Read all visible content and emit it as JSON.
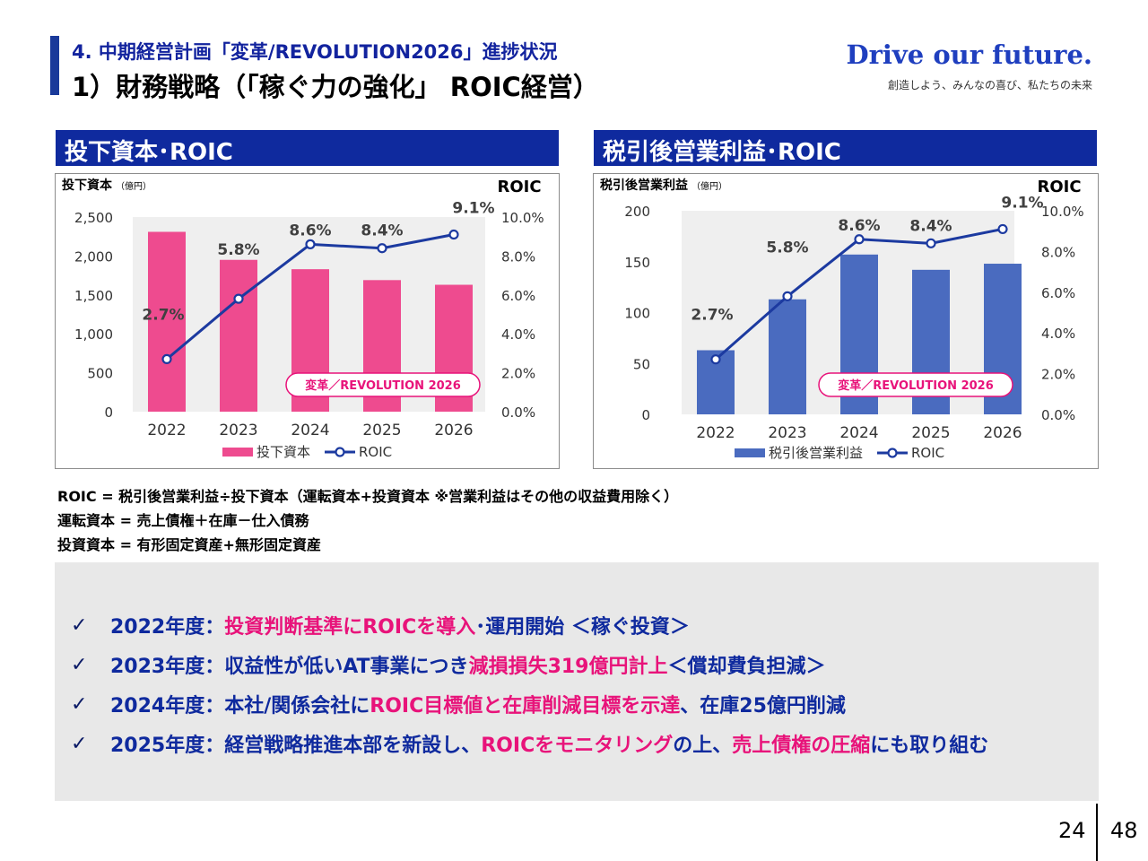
{
  "header": {
    "section": "4. 中期経営計画「変革/REVOLUTION2026」進捗状況",
    "title": "1）財務戦略（「稼ぐ力の強化」 ROIC経営）",
    "slogan": "Drive our future.",
    "slogan_sub": "創造しよう、みんなの喜び、私たちの未来"
  },
  "left_panel": {
    "heading": "投下資本･ROIC"
  },
  "right_panel": {
    "heading": "税引後営業利益･ROIC"
  },
  "chart_data": [
    {
      "type": "bar",
      "title": "",
      "ylabel": "投下資本",
      "ylabel_unit": "（億円）",
      "y2label": "ROIC",
      "categories": [
        "2022",
        "2023",
        "2024",
        "2025",
        "2026"
      ],
      "ylim": [
        0,
        2500
      ],
      "yticks": [
        "2,500",
        "2,000",
        "1,500",
        "1,000",
        "500",
        "0"
      ],
      "y2lim": [
        0,
        10
      ],
      "y2ticks": [
        "10.0%",
        "8.0%",
        "6.0%",
        "4.0%",
        "2.0%",
        "0.0%"
      ],
      "series": [
        {
          "name": "投下資本",
          "type": "bar",
          "color": "#ee4b8f",
          "values": [
            2310,
            1950,
            1830,
            1690,
            1630
          ]
        },
        {
          "name": "ROIC",
          "type": "line",
          "axis": "right",
          "color": "#1c3aa0",
          "values": [
            2.7,
            5.8,
            8.6,
            8.4,
            9.1
          ],
          "labels": [
            "2.7%",
            "5.8%",
            "8.6%",
            "8.4%",
            "9.1%"
          ]
        }
      ],
      "annotation": "変革／REVOLUTION 2026",
      "grid": false,
      "legend_position": "bottom"
    },
    {
      "type": "bar",
      "title": "",
      "ylabel": "税引後営業利益",
      "ylabel_unit": "（億円）",
      "y2label": "ROIC",
      "categories": [
        "2022",
        "2023",
        "2024",
        "2025",
        "2026"
      ],
      "ylim": [
        0,
        200
      ],
      "yticks": [
        "200",
        "150",
        "100",
        "50",
        "0"
      ],
      "y2lim": [
        0,
        10
      ],
      "y2ticks": [
        "10.0%",
        "8.0%",
        "6.0%",
        "4.0%",
        "2.0%",
        "0.0%"
      ],
      "series": [
        {
          "name": "税引後営業利益",
          "type": "bar",
          "color": "#4a6bbf",
          "values": [
            63,
            113,
            157,
            142,
            148
          ]
        },
        {
          "name": "ROIC",
          "type": "line",
          "axis": "right",
          "color": "#1c3aa0",
          "values": [
            2.7,
            5.8,
            8.6,
            8.4,
            9.1
          ],
          "labels": [
            "2.7%",
            "5.8%",
            "8.6%",
            "8.4%",
            "9.1%"
          ]
        }
      ],
      "annotation": "変革／REVOLUTION 2026",
      "grid": false,
      "legend_position": "bottom"
    }
  ],
  "formulas": [
    "ROIC = 税引後営業利益÷投下資本（運転資本+投資資本 ※営業利益はその他の収益費用除く）",
    "運転資本 = 売上債権＋在庫－仕入債務",
    "投資資本 = 有形固定資産+無形固定資産"
  ],
  "summary": [
    {
      "check": "✓",
      "parts": [
        {
          "text": "2022年度：",
          "color": "blue"
        },
        {
          "text": "投資判断基準にROICを導入",
          "color": "pink"
        },
        {
          "text": "･運用開始 ＜稼ぐ投資＞",
          "color": "blue"
        }
      ]
    },
    {
      "check": "✓",
      "parts": [
        {
          "text": "2023年度：収益性が低いAT事業につき",
          "color": "blue"
        },
        {
          "text": "減損損失319億円計上",
          "color": "pink"
        },
        {
          "text": " ＜償却費負担減＞",
          "color": "blue"
        }
      ]
    },
    {
      "check": "✓",
      "parts": [
        {
          "text": "2024年度：本社/関係会社に",
          "color": "blue"
        },
        {
          "text": "ROIC目標値と在庫削減目標を示達",
          "color": "pink"
        },
        {
          "text": "、在庫25億円削減",
          "color": "blue"
        }
      ]
    },
    {
      "check": "✓",
      "parts": [
        {
          "text": "2025年度：経営戦略推進本部を新設し、",
          "color": "blue"
        },
        {
          "text": "ROICをモニタリング",
          "color": "pink"
        },
        {
          "text": "の上、",
          "color": "blue"
        },
        {
          "text": "売上債権の圧縮",
          "color": "pink"
        },
        {
          "text": "にも取り組む",
          "color": "blue"
        }
      ]
    }
  ],
  "footer": {
    "page": "24",
    "total": "48"
  }
}
